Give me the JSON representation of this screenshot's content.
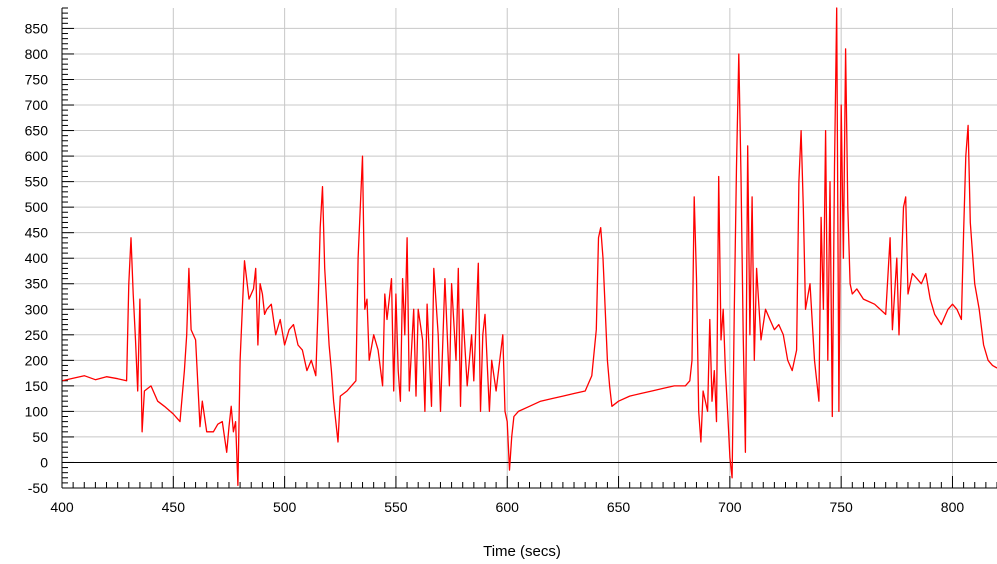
{
  "chart_data": {
    "type": "line",
    "title": "",
    "xlabel": "Time (secs)",
    "ylabel": "",
    "xlim": [
      400,
      820
    ],
    "ylim": [
      -50,
      890
    ],
    "x_ticks": [
      400,
      450,
      500,
      550,
      600,
      650,
      700,
      750,
      800
    ],
    "y_ticks": [
      -50,
      0,
      50,
      100,
      150,
      200,
      250,
      300,
      350,
      400,
      450,
      500,
      550,
      600,
      650,
      700,
      750,
      800,
      850
    ],
    "grid": true,
    "legend": "none",
    "series": [
      {
        "color": "#ff0000",
        "points": [
          [
            400,
            160
          ],
          [
            405,
            165
          ],
          [
            410,
            170
          ],
          [
            415,
            162
          ],
          [
            420,
            168
          ],
          [
            425,
            164
          ],
          [
            429,
            160
          ],
          [
            430,
            350
          ],
          [
            431,
            440
          ],
          [
            432,
            330
          ],
          [
            433,
            240
          ],
          [
            434,
            140
          ],
          [
            435,
            320
          ],
          [
            436,
            60
          ],
          [
            437,
            140
          ],
          [
            440,
            150
          ],
          [
            443,
            120
          ],
          [
            446,
            110
          ],
          [
            450,
            95
          ],
          [
            453,
            80
          ],
          [
            455,
            180
          ],
          [
            456,
            250
          ],
          [
            457,
            380
          ],
          [
            458,
            260
          ],
          [
            460,
            240
          ],
          [
            462,
            70
          ],
          [
            463,
            120
          ],
          [
            465,
            60
          ],
          [
            468,
            60
          ],
          [
            470,
            75
          ],
          [
            472,
            80
          ],
          [
            474,
            20
          ],
          [
            475,
            70
          ],
          [
            476,
            110
          ],
          [
            477,
            60
          ],
          [
            478,
            80
          ],
          [
            479,
            -45
          ],
          [
            480,
            200
          ],
          [
            481,
            300
          ],
          [
            482,
            395
          ],
          [
            484,
            320
          ],
          [
            486,
            340
          ],
          [
            487,
            380
          ],
          [
            488,
            230
          ],
          [
            489,
            350
          ],
          [
            490,
            330
          ],
          [
            491,
            290
          ],
          [
            492,
            300
          ],
          [
            494,
            310
          ],
          [
            496,
            250
          ],
          [
            498,
            280
          ],
          [
            500,
            230
          ],
          [
            502,
            260
          ],
          [
            504,
            270
          ],
          [
            506,
            230
          ],
          [
            508,
            220
          ],
          [
            510,
            180
          ],
          [
            512,
            200
          ],
          [
            514,
            170
          ],
          [
            515,
            300
          ],
          [
            516,
            460
          ],
          [
            517,
            540
          ],
          [
            518,
            380
          ],
          [
            520,
            230
          ],
          [
            521,
            180
          ],
          [
            522,
            120
          ],
          [
            524,
            40
          ],
          [
            525,
            130
          ],
          [
            528,
            140
          ],
          [
            530,
            150
          ],
          [
            532,
            160
          ],
          [
            533,
            400
          ],
          [
            535,
            600
          ],
          [
            536,
            300
          ],
          [
            537,
            320
          ],
          [
            538,
            200
          ],
          [
            540,
            250
          ],
          [
            542,
            220
          ],
          [
            544,
            150
          ],
          [
            545,
            330
          ],
          [
            546,
            280
          ],
          [
            548,
            360
          ],
          [
            549,
            140
          ],
          [
            550,
            330
          ],
          [
            551,
            180
          ],
          [
            552,
            120
          ],
          [
            553,
            360
          ],
          [
            554,
            250
          ],
          [
            555,
            440
          ],
          [
            556,
            140
          ],
          [
            558,
            300
          ],
          [
            559,
            130
          ],
          [
            560,
            300
          ],
          [
            562,
            240
          ],
          [
            563,
            100
          ],
          [
            564,
            310
          ],
          [
            566,
            110
          ],
          [
            567,
            380
          ],
          [
            569,
            250
          ],
          [
            570,
            100
          ],
          [
            572,
            360
          ],
          [
            574,
            150
          ],
          [
            575,
            350
          ],
          [
            577,
            200
          ],
          [
            578,
            380
          ],
          [
            579,
            110
          ],
          [
            580,
            300
          ],
          [
            582,
            150
          ],
          [
            584,
            250
          ],
          [
            585,
            160
          ],
          [
            587,
            390
          ],
          [
            588,
            100
          ],
          [
            589,
            250
          ],
          [
            590,
            290
          ],
          [
            592,
            100
          ],
          [
            593,
            200
          ],
          [
            595,
            140
          ],
          [
            598,
            250
          ],
          [
            599,
            100
          ],
          [
            600,
            80
          ],
          [
            601,
            -15
          ],
          [
            602,
            50
          ],
          [
            603,
            90
          ],
          [
            605,
            100
          ],
          [
            610,
            110
          ],
          [
            615,
            120
          ],
          [
            620,
            125
          ],
          [
            625,
            130
          ],
          [
            630,
            135
          ],
          [
            635,
            140
          ],
          [
            638,
            170
          ],
          [
            640,
            260
          ],
          [
            641,
            440
          ],
          [
            642,
            460
          ],
          [
            643,
            400
          ],
          [
            644,
            300
          ],
          [
            645,
            200
          ],
          [
            646,
            150
          ],
          [
            647,
            110
          ],
          [
            650,
            120
          ],
          [
            655,
            130
          ],
          [
            660,
            135
          ],
          [
            665,
            140
          ],
          [
            670,
            145
          ],
          [
            675,
            150
          ],
          [
            680,
            150
          ],
          [
            682,
            160
          ],
          [
            683,
            200
          ],
          [
            684,
            520
          ],
          [
            685,
            360
          ],
          [
            686,
            100
          ],
          [
            687,
            40
          ],
          [
            688,
            140
          ],
          [
            690,
            100
          ],
          [
            691,
            280
          ],
          [
            692,
            120
          ],
          [
            693,
            180
          ],
          [
            694,
            80
          ],
          [
            695,
            560
          ],
          [
            696,
            240
          ],
          [
            697,
            300
          ],
          [
            698,
            180
          ],
          [
            699,
            100
          ],
          [
            700,
            10
          ],
          [
            701,
            -30
          ],
          [
            702,
            300
          ],
          [
            703,
            580
          ],
          [
            704,
            800
          ],
          [
            705,
            560
          ],
          [
            706,
            250
          ],
          [
            707,
            20
          ],
          [
            708,
            620
          ],
          [
            709,
            250
          ],
          [
            710,
            520
          ],
          [
            711,
            200
          ],
          [
            712,
            380
          ],
          [
            714,
            240
          ],
          [
            716,
            300
          ],
          [
            718,
            280
          ],
          [
            720,
            260
          ],
          [
            722,
            270
          ],
          [
            724,
            250
          ],
          [
            726,
            200
          ],
          [
            728,
            180
          ],
          [
            730,
            220
          ],
          [
            731,
            550
          ],
          [
            732,
            650
          ],
          [
            733,
            500
          ],
          [
            734,
            300
          ],
          [
            736,
            350
          ],
          [
            738,
            200
          ],
          [
            740,
            120
          ],
          [
            741,
            480
          ],
          [
            742,
            300
          ],
          [
            743,
            650
          ],
          [
            744,
            200
          ],
          [
            745,
            550
          ],
          [
            746,
            90
          ],
          [
            747,
            580
          ],
          [
            748,
            890
          ],
          [
            749,
            100
          ],
          [
            750,
            700
          ],
          [
            751,
            400
          ],
          [
            752,
            810
          ],
          [
            753,
            500
          ],
          [
            754,
            350
          ],
          [
            755,
            330
          ],
          [
            757,
            340
          ],
          [
            760,
            320
          ],
          [
            765,
            310
          ],
          [
            770,
            290
          ],
          [
            772,
            440
          ],
          [
            773,
            260
          ],
          [
            775,
            400
          ],
          [
            776,
            250
          ],
          [
            778,
            500
          ],
          [
            779,
            520
          ],
          [
            780,
            330
          ],
          [
            782,
            370
          ],
          [
            784,
            360
          ],
          [
            786,
            350
          ],
          [
            788,
            370
          ],
          [
            790,
            320
          ],
          [
            792,
            290
          ],
          [
            795,
            270
          ],
          [
            798,
            300
          ],
          [
            800,
            310
          ],
          [
            802,
            300
          ],
          [
            804,
            280
          ],
          [
            805,
            450
          ],
          [
            806,
            600
          ],
          [
            807,
            660
          ],
          [
            808,
            470
          ],
          [
            810,
            350
          ],
          [
            812,
            300
          ],
          [
            814,
            230
          ],
          [
            816,
            200
          ],
          [
            818,
            190
          ],
          [
            820,
            185
          ]
        ]
      }
    ]
  }
}
